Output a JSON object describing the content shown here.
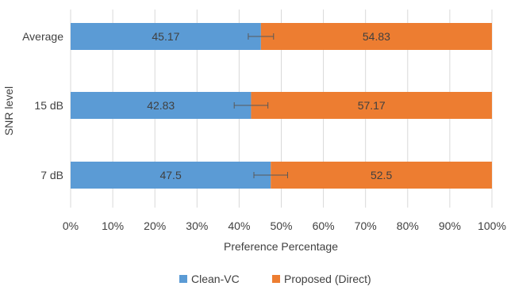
{
  "chart_data": {
    "type": "bar",
    "orientation": "horizontal",
    "stacked": true,
    "normalized_percent": true,
    "categories": [
      "Average",
      "15 dB",
      "7 dB"
    ],
    "series": [
      {
        "name": "Clean-VC",
        "values": [
          45.17,
          42.83,
          47.5
        ],
        "color": "#5b9bd5",
        "error": [
          3.0,
          4.0,
          4.0
        ]
      },
      {
        "name": "Proposed (Direct)",
        "values": [
          54.83,
          57.17,
          52.5
        ],
        "color": "#ed7d31"
      }
    ],
    "data_labels": [
      [
        "45.17",
        "42.83",
        "47.5"
      ],
      [
        "54.83",
        "57.17",
        "52.5"
      ]
    ],
    "xlabel": "Preference Percentage",
    "ylabel": "SNR level",
    "xlim": [
      0,
      100
    ],
    "xticks": [
      "0%",
      "10%",
      "20%",
      "30%",
      "40%",
      "50%",
      "60%",
      "70%",
      "80%",
      "90%",
      "100%"
    ],
    "grid": "vertical",
    "legend_position": "bottom"
  }
}
